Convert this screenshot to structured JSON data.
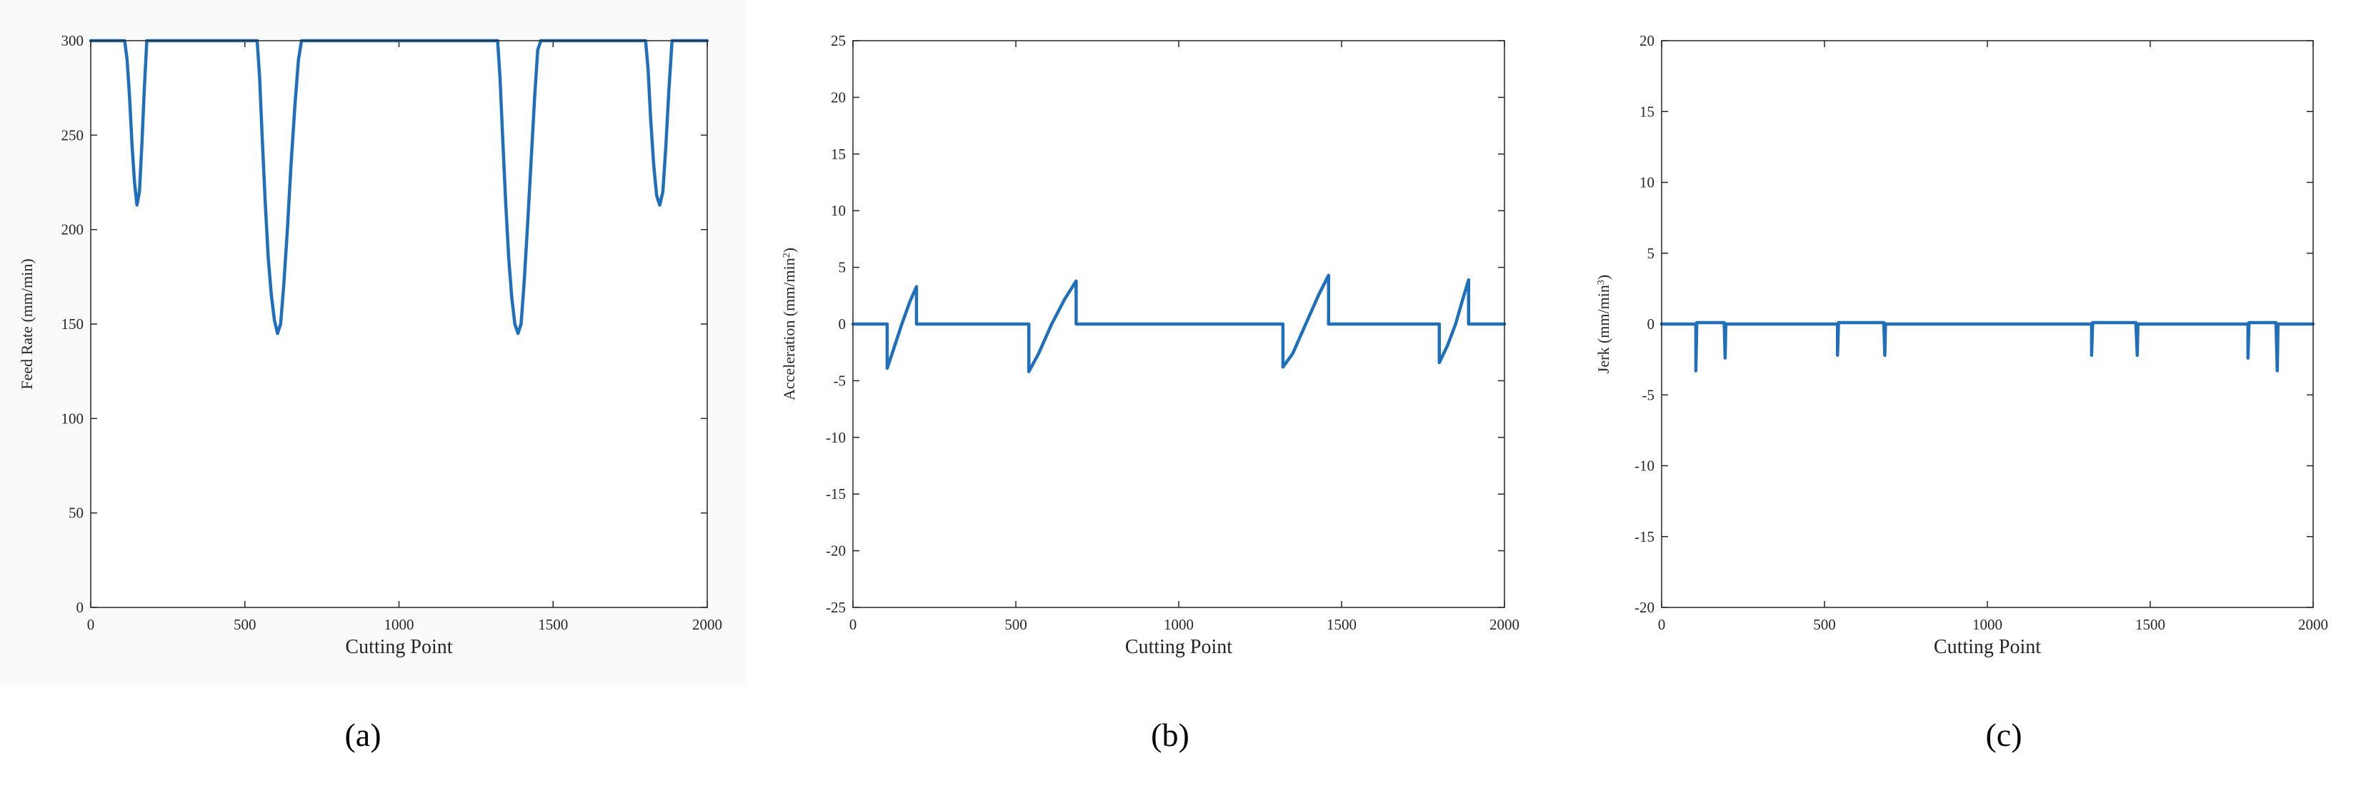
{
  "colors": {
    "line": "#1f6fba",
    "axis": "#262626",
    "background": "#ffffff"
  },
  "chart_data": [
    {
      "type": "line",
      "panel_caption": "(a)",
      "xlabel": "Cutting Point",
      "ylabel": "Feed Rate (mm/min)",
      "ylabel_parts": [
        "Feed Rate (mm/min)",
        ""
      ],
      "xlim": [
        0,
        2000
      ],
      "ylim": [
        0,
        300
      ],
      "xticks": [
        0,
        500,
        1000,
        1500,
        2000
      ],
      "yticks": [
        0,
        50,
        100,
        150,
        200,
        250,
        300
      ],
      "grid": false,
      "series": [
        {
          "name": "Feed Rate",
          "points": [
            [
              0,
              300
            ],
            [
              110,
              300
            ],
            [
              118,
              290
            ],
            [
              126,
              270
            ],
            [
              134,
              245
            ],
            [
              142,
              225
            ],
            [
              150,
              213
            ],
            [
              158,
              220
            ],
            [
              166,
              245
            ],
            [
              174,
              275
            ],
            [
              182,
              300
            ],
            [
              200,
              300
            ],
            [
              540,
              300
            ],
            [
              548,
              280
            ],
            [
              556,
              250
            ],
            [
              566,
              215
            ],
            [
              576,
              185
            ],
            [
              586,
              165
            ],
            [
              596,
              152
            ],
            [
              606,
              145
            ],
            [
              616,
              150
            ],
            [
              626,
              170
            ],
            [
              638,
              200
            ],
            [
              650,
              235
            ],
            [
              662,
              265
            ],
            [
              674,
              290
            ],
            [
              684,
              300
            ],
            [
              1320,
              300
            ],
            [
              1328,
              280
            ],
            [
              1336,
              250
            ],
            [
              1346,
              215
            ],
            [
              1356,
              185
            ],
            [
              1366,
              164
            ],
            [
              1376,
              150
            ],
            [
              1386,
              145
            ],
            [
              1396,
              150
            ],
            [
              1406,
              172
            ],
            [
              1418,
              205
            ],
            [
              1430,
              240
            ],
            [
              1440,
              270
            ],
            [
              1450,
              295
            ],
            [
              1460,
              300
            ],
            [
              1800,
              300
            ],
            [
              1808,
              285
            ],
            [
              1816,
              260
            ],
            [
              1826,
              235
            ],
            [
              1836,
              218
            ],
            [
              1846,
              213
            ],
            [
              1856,
              220
            ],
            [
              1866,
              245
            ],
            [
              1876,
              275
            ],
            [
              1886,
              300
            ],
            [
              2000,
              300
            ]
          ]
        }
      ]
    },
    {
      "type": "line",
      "panel_caption": "(b)",
      "xlabel": "Cutting Point",
      "ylabel": "Acceleration (mm/min²)",
      "ylabel_parts": [
        "Acceleration (mm/min",
        "2",
        ")"
      ],
      "xlim": [
        0,
        2000
      ],
      "ylim": [
        -25,
        25
      ],
      "xticks": [
        0,
        500,
        1000,
        1500,
        2000
      ],
      "yticks": [
        -25,
        -20,
        -15,
        -10,
        -5,
        0,
        5,
        10,
        15,
        20,
        25
      ],
      "grid": false,
      "series": [
        {
          "name": "Acceleration",
          "points": [
            [
              0,
              0
            ],
            [
              105,
              0
            ],
            [
              105,
              -3.9
            ],
            [
              125,
              -2.2
            ],
            [
              150,
              0
            ],
            [
              175,
              2
            ],
            [
              195,
              3.3
            ],
            [
              195,
              0
            ],
            [
              540,
              0
            ],
            [
              540,
              -4.2
            ],
            [
              570,
              -2.6
            ],
            [
              610,
              0
            ],
            [
              650,
              2.2
            ],
            [
              685,
              3.8
            ],
            [
              685,
              0
            ],
            [
              1320,
              0
            ],
            [
              1320,
              -3.8
            ],
            [
              1350,
              -2.6
            ],
            [
              1390,
              0
            ],
            [
              1430,
              2.6
            ],
            [
              1460,
              4.3
            ],
            [
              1460,
              0
            ],
            [
              1800,
              0
            ],
            [
              1800,
              -3.4
            ],
            [
              1825,
              -1.9
            ],
            [
              1850,
              0
            ],
            [
              1870,
              2
            ],
            [
              1890,
              3.9
            ],
            [
              1890,
              0
            ],
            [
              2000,
              0
            ]
          ]
        }
      ]
    },
    {
      "type": "line",
      "panel_caption": "(c)",
      "xlabel": "Cutting Point",
      "ylabel": "Jerk (mm/min³)",
      "ylabel_parts": [
        "Jerk (mm/min",
        "3",
        ")"
      ],
      "xlim": [
        0,
        2000
      ],
      "ylim": [
        -20,
        20
      ],
      "xticks": [
        0,
        500,
        1000,
        1500,
        2000
      ],
      "yticks": [
        -20,
        -15,
        -10,
        -5,
        0,
        5,
        10,
        15,
        20
      ],
      "grid": false,
      "series": [
        {
          "name": "Jerk",
          "points": [
            [
              0,
              0
            ],
            [
              105,
              0
            ],
            [
              105,
              -3.3
            ],
            [
              108,
              0.1
            ],
            [
              192,
              0.1
            ],
            [
              195,
              -2.4
            ],
            [
              197,
              0
            ],
            [
              540,
              0
            ],
            [
              540,
              -2.2
            ],
            [
              543,
              0.1
            ],
            [
              682,
              0.1
            ],
            [
              685,
              -2.2
            ],
            [
              687,
              0
            ],
            [
              1320,
              0
            ],
            [
              1320,
              -2.2
            ],
            [
              1323,
              0.1
            ],
            [
              1456,
              0.1
            ],
            [
              1460,
              -2.2
            ],
            [
              1462,
              0
            ],
            [
              1800,
              0
            ],
            [
              1800,
              -2.4
            ],
            [
              1803,
              0.1
            ],
            [
              1886,
              0.1
            ],
            [
              1890,
              -3.3
            ],
            [
              1892,
              0
            ],
            [
              2000,
              0
            ]
          ]
        }
      ]
    }
  ]
}
